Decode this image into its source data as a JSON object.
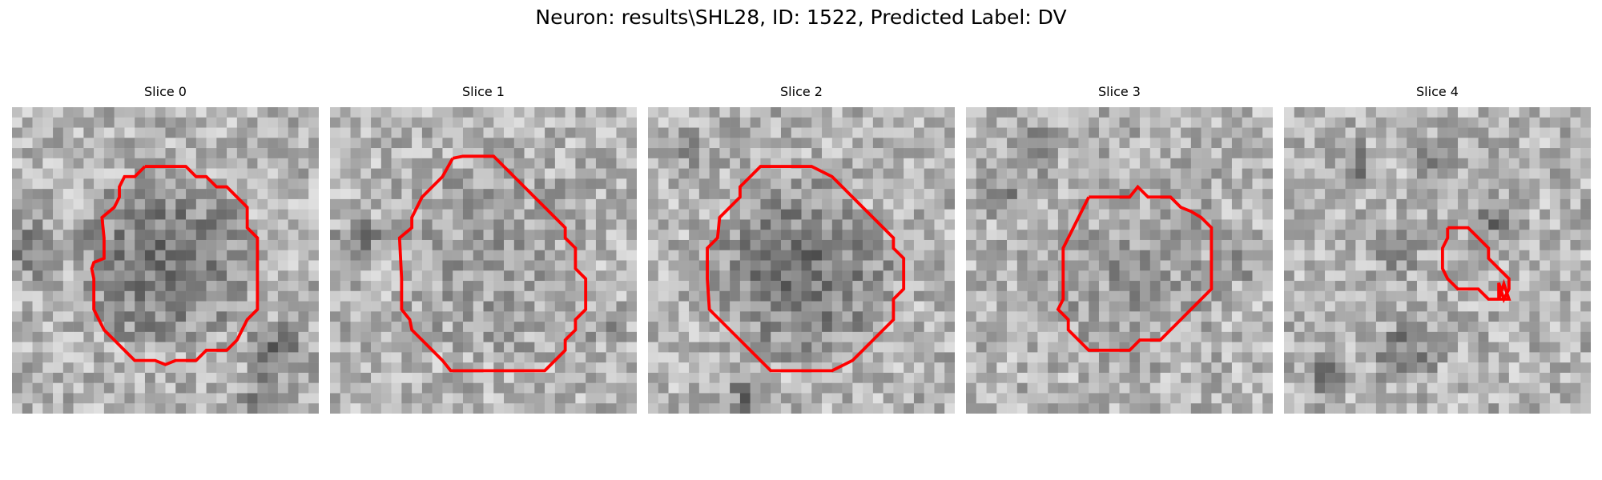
{
  "figure": {
    "title": "Neuron: results\\SHL28, ID: 1522, Predicted Label: DV"
  },
  "panels": [
    {
      "title": "Slice 0",
      "dark_blob": "large",
      "contour": "large"
    },
    {
      "title": "Slice 1",
      "dark_blob": "faint",
      "contour": "large"
    },
    {
      "title": "Slice 2",
      "dark_blob": "large",
      "contour": "large"
    },
    {
      "title": "Slice 3",
      "dark_blob": "faint",
      "contour": "medium"
    },
    {
      "title": "Slice 4",
      "dark_blob": "none",
      "contour": "small"
    }
  ],
  "colors": {
    "contour": "#ff0000",
    "background": "#ffffff",
    "text": "#000000"
  }
}
